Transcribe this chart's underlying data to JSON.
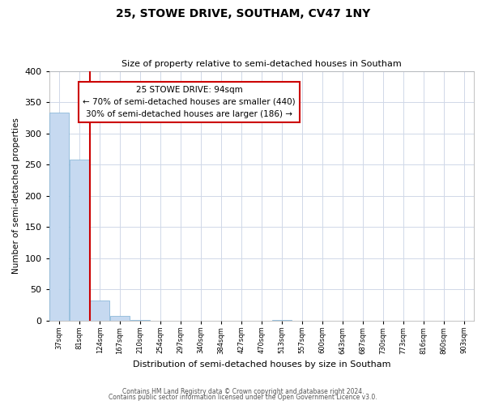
{
  "title": "25, STOWE DRIVE, SOUTHAM, CV47 1NY",
  "subtitle": "Size of property relative to semi-detached houses in Southam",
  "xlabel": "Distribution of semi-detached houses by size in Southam",
  "ylabel": "Number of semi-detached properties",
  "bin_labels": [
    "37sqm",
    "81sqm",
    "124sqm",
    "167sqm",
    "210sqm",
    "254sqm",
    "297sqm",
    "340sqm",
    "384sqm",
    "427sqm",
    "470sqm",
    "513sqm",
    "557sqm",
    "600sqm",
    "643sqm",
    "687sqm",
    "730sqm",
    "773sqm",
    "816sqm",
    "860sqm",
    "903sqm"
  ],
  "bar_values": [
    333,
    258,
    32,
    7,
    1,
    0,
    0,
    0,
    0,
    0,
    0,
    1,
    0,
    0,
    0,
    0,
    0,
    0,
    0,
    0,
    0
  ],
  "bar_color": "#c6d9f0",
  "bar_edge_color": "#7bafd4",
  "vline_x_index": 1,
  "annotation_title": "25 STOWE DRIVE: 94sqm",
  "annotation_line1": "← 70% of semi-detached houses are smaller (440)",
  "annotation_line2": "30% of semi-detached houses are larger (186) →",
  "annotation_box_color": "#ffffff",
  "annotation_box_edge_color": "#cc0000",
  "vline_color": "#cc0000",
  "ylim": [
    0,
    400
  ],
  "yticks": [
    0,
    50,
    100,
    150,
    200,
    250,
    300,
    350,
    400
  ],
  "footnote1": "Contains HM Land Registry data © Crown copyright and database right 2024.",
  "footnote2": "Contains public sector information licensed under the Open Government Licence v3.0.",
  "background_color": "#ffffff",
  "grid_color": "#d0d8e8"
}
